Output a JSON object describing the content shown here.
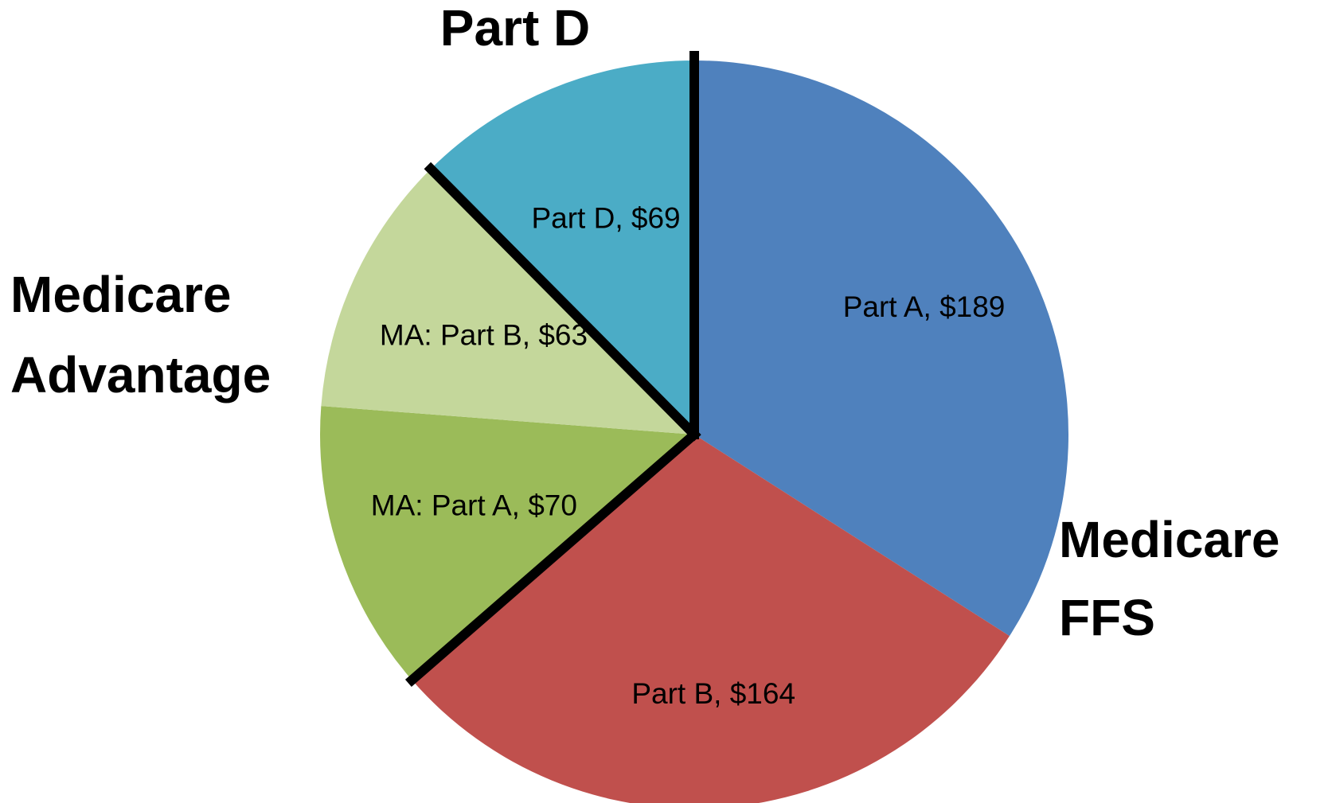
{
  "chart_data": {
    "type": "pie",
    "values": [
      189,
      164,
      70,
      63,
      69
    ],
    "value_labels": [
      "Part A, $189",
      "Part B, $164",
      "MA: Part A, $70",
      "MA: Part B, $63",
      "Part D, $69"
    ],
    "colors": [
      "#4f81bd",
      "#c0504d",
      "#9bbb59",
      "#c4d79b",
      "#4bacc6"
    ],
    "annotations": [
      {
        "lines": [
          "Part D"
        ]
      },
      {
        "lines": [
          "Medicare",
          "Advantage"
        ]
      },
      {
        "lines": [
          "Medicare",
          "FFS"
        ]
      }
    ]
  }
}
